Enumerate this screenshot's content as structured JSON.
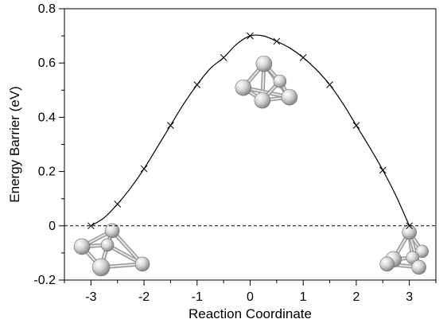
{
  "chart_data": {
    "type": "line",
    "title": "",
    "xlabel": "Reaction Coordinate",
    "ylabel": "Energy Barrier (eV)",
    "xlim": [
      -3.5,
      3.5
    ],
    "ylim": [
      -0.2,
      0.8
    ],
    "xticks": [
      -3,
      -2,
      -1,
      0,
      1,
      2,
      3
    ],
    "yticks": [
      -0.2,
      0,
      0.2,
      0.4,
      0.6,
      0.8
    ],
    "xtick_labels": [
      "-3",
      "-2",
      "-1",
      "0",
      "1",
      "2",
      "3"
    ],
    "ytick_labels": [
      "-0.2",
      "0",
      "0.2",
      "0.4",
      "0.6",
      "0.8"
    ],
    "grid": false,
    "legend": "none",
    "reference_line": {
      "y": 0,
      "style": "dashed"
    },
    "line_color": "#000000",
    "series": [
      {
        "marker": "x",
        "x": [
          -3,
          -2.5,
          -2,
          -1.5,
          -1,
          -0.5,
          0,
          0.5,
          1,
          1.5,
          2,
          2.5,
          3
        ],
        "y": [
          0.0,
          0.08,
          0.21,
          0.37,
          0.52,
          0.62,
          0.7,
          0.68,
          0.62,
          0.52,
          0.37,
          0.205,
          0.0
        ]
      }
    ],
    "curve": {
      "x": [
        -3,
        -2.75,
        -2.5,
        -2.25,
        -2,
        -1.75,
        -1.5,
        -1.25,
        -1,
        -0.75,
        -0.5,
        -0.25,
        0,
        0.25,
        0.5,
        0.75,
        1,
        1.25,
        1.5,
        1.75,
        2,
        2.25,
        2.5,
        2.75,
        3
      ],
      "y": [
        0.0,
        0.03,
        0.08,
        0.14,
        0.21,
        0.29,
        0.37,
        0.45,
        0.52,
        0.58,
        0.62,
        0.67,
        0.7,
        0.7,
        0.68,
        0.655,
        0.62,
        0.575,
        0.52,
        0.45,
        0.37,
        0.29,
        0.205,
        0.11,
        0.0
      ]
    },
    "cluster_illustrations": [
      {
        "name": "initial-cluster",
        "x": -2.6,
        "y": -0.1
      },
      {
        "name": "transition-cluster",
        "x": 0.35,
        "y": 0.48
      },
      {
        "name": "final-cluster",
        "x": 3.0,
        "y": -0.1
      }
    ]
  }
}
